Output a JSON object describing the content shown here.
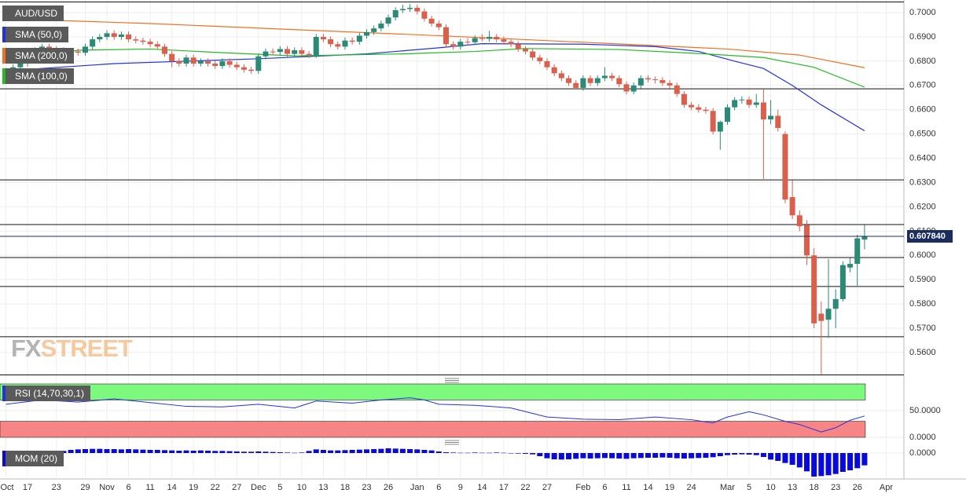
{
  "chart_data": [
    {
      "type": "candlestick",
      "title": "AUD/USD",
      "categories": [
        "Oct",
        null,
        null,
        "17",
        null,
        null,
        null,
        "23",
        null,
        null,
        null,
        "29",
        null,
        null,
        "Nov",
        null,
        null,
        "6",
        null,
        null,
        "11",
        null,
        null,
        "14",
        null,
        null,
        "19",
        null,
        null,
        "22",
        null,
        null,
        "27",
        null,
        null,
        "Dec",
        null,
        null,
        "5",
        null,
        null,
        "10",
        null,
        null,
        "13",
        null,
        null,
        "18",
        null,
        null,
        "23",
        null,
        null,
        "26",
        null,
        null,
        null,
        "Jan",
        null,
        null,
        "6",
        null,
        null,
        "9",
        null,
        null,
        "14",
        null,
        null,
        "17",
        null,
        null,
        "22",
        null,
        null,
        "27",
        null,
        null,
        null,
        null,
        "Feb",
        null,
        null,
        "6",
        null,
        null,
        "11",
        null,
        null,
        "14",
        null,
        null,
        "19",
        null,
        null,
        "24",
        null,
        null,
        null,
        null,
        "Mar",
        null,
        null,
        "5",
        null,
        null,
        "10",
        null,
        null,
        "13",
        null,
        null,
        "18",
        null,
        null,
        "23",
        null,
        null,
        "26",
        null,
        null,
        null,
        "Apr"
      ],
      "candles": [
        [
          0.675,
          0.6772,
          0.6738,
          0.676
        ],
        [
          0.676,
          0.6787,
          0.6748,
          0.6775
        ],
        [
          0.6775,
          0.6802,
          0.6763,
          0.679
        ],
        [
          0.679,
          0.6842,
          0.6778,
          0.683
        ],
        [
          0.683,
          0.6857,
          0.6818,
          0.6845
        ],
        [
          0.6845,
          0.6872,
          0.6833,
          0.686
        ],
        [
          0.686,
          0.6872,
          0.6838,
          0.685
        ],
        [
          0.685,
          0.6862,
          0.6833,
          0.6845
        ],
        [
          0.6845,
          0.6857,
          0.6813,
          0.6825
        ],
        [
          0.6825,
          0.6852,
          0.6813,
          0.684
        ],
        [
          0.684,
          0.6852,
          0.6823,
          0.6835
        ],
        [
          0.6835,
          0.6872,
          0.6823,
          0.686
        ],
        [
          0.686,
          0.6902,
          0.6848,
          0.689
        ],
        [
          0.689,
          0.6912,
          0.6878,
          0.69
        ],
        [
          0.69,
          0.6927,
          0.6888,
          0.6915
        ],
        [
          0.6915,
          0.6927,
          0.6888,
          0.69
        ],
        [
          0.69,
          0.6922,
          0.6888,
          0.691
        ],
        [
          0.691,
          0.6922,
          0.6878,
          0.689
        ],
        [
          0.689,
          0.6902,
          0.6873,
          0.6885
        ],
        [
          0.6885,
          0.6897,
          0.6868,
          0.688
        ],
        [
          0.688,
          0.6892,
          0.6858,
          0.687
        ],
        [
          0.687,
          0.6882,
          0.6848,
          0.686
        ],
        [
          0.686,
          0.6872,
          0.6818,
          0.683
        ],
        [
          0.683,
          0.6842,
          0.6775,
          0.68
        ],
        [
          0.68,
          0.6812,
          0.6778,
          0.679
        ],
        [
          0.679,
          0.6827,
          0.6778,
          0.6815
        ],
        [
          0.6815,
          0.6827,
          0.6778,
          0.679
        ],
        [
          0.679,
          0.6812,
          0.6778,
          0.68
        ],
        [
          0.68,
          0.6812,
          0.6778,
          0.679
        ],
        [
          0.679,
          0.6802,
          0.6768,
          0.678
        ],
        [
          0.678,
          0.6812,
          0.6768,
          0.68
        ],
        [
          0.68,
          0.6812,
          0.6773,
          0.6785
        ],
        [
          0.6785,
          0.6797,
          0.6763,
          0.6775
        ],
        [
          0.6775,
          0.6787,
          0.6753,
          0.6765
        ],
        [
          0.6765,
          0.6777,
          0.6748,
          0.676
        ],
        [
          0.676,
          0.6832,
          0.6748,
          0.682
        ],
        [
          0.682,
          0.6852,
          0.6808,
          0.684
        ],
        [
          0.684,
          0.6852,
          0.6828,
          0.6838
        ],
        [
          0.6838,
          0.6862,
          0.6826,
          0.685
        ],
        [
          0.685,
          0.6862,
          0.6818,
          0.683
        ],
        [
          0.683,
          0.6857,
          0.6818,
          0.6845
        ],
        [
          0.6845,
          0.6857,
          0.6818,
          0.683
        ],
        [
          0.683,
          0.6842,
          0.6813,
          0.6825
        ],
        [
          0.6825,
          0.6912,
          0.6813,
          0.69
        ],
        [
          0.69,
          0.6912,
          0.6878,
          0.689
        ],
        [
          0.689,
          0.6902,
          0.6858,
          0.687
        ],
        [
          0.687,
          0.6882,
          0.6848,
          0.686
        ],
        [
          0.686,
          0.6897,
          0.6848,
          0.6885
        ],
        [
          0.6885,
          0.6897,
          0.6868,
          0.688
        ],
        [
          0.688,
          0.6917,
          0.6868,
          0.6905
        ],
        [
          0.6905,
          0.6932,
          0.6893,
          0.692
        ],
        [
          0.692,
          0.6947,
          0.6908,
          0.6935
        ],
        [
          0.6935,
          0.6967,
          0.6923,
          0.6955
        ],
        [
          0.6955,
          0.6992,
          0.6943,
          0.698
        ],
        [
          0.698,
          0.7022,
          0.6968,
          0.701
        ],
        [
          0.701,
          0.7032,
          0.6998,
          0.7015
        ],
        [
          0.7015,
          0.7035,
          0.7003,
          0.702
        ],
        [
          0.702,
          0.7032,
          0.6993,
          0.7005
        ],
        [
          0.7005,
          0.7017,
          0.6963,
          0.6975
        ],
        [
          0.6975,
          0.6987,
          0.6943,
          0.6955
        ],
        [
          0.6955,
          0.6967,
          0.6928,
          0.694
        ],
        [
          0.694,
          0.6952,
          0.6858,
          0.687
        ],
        [
          0.687,
          0.6882,
          0.6848,
          0.686
        ],
        [
          0.686,
          0.6892,
          0.6848,
          0.688
        ],
        [
          0.688,
          0.6895,
          0.6865,
          0.6878
        ],
        [
          0.6878,
          0.6907,
          0.6866,
          0.6895
        ],
        [
          0.6895,
          0.6912,
          0.6882,
          0.6892
        ],
        [
          0.6892,
          0.6925,
          0.688,
          0.69
        ],
        [
          0.69,
          0.6912,
          0.6878,
          0.689
        ],
        [
          0.689,
          0.6902,
          0.6868,
          0.688
        ],
        [
          0.688,
          0.6892,
          0.6858,
          0.687
        ],
        [
          0.687,
          0.6882,
          0.6838,
          0.685
        ],
        [
          0.685,
          0.6862,
          0.6828,
          0.684
        ],
        [
          0.684,
          0.6852,
          0.6803,
          0.6815
        ],
        [
          0.6815,
          0.6827,
          0.6788,
          0.68
        ],
        [
          0.68,
          0.6812,
          0.6763,
          0.6775
        ],
        [
          0.6775,
          0.6787,
          0.6738,
          0.675
        ],
        [
          0.675,
          0.6762,
          0.6718,
          0.673
        ],
        [
          0.673,
          0.6742,
          0.6698,
          0.671
        ],
        [
          0.671,
          0.6722,
          0.6683,
          0.669
        ],
        [
          0.669,
          0.6742,
          0.6678,
          0.673
        ],
        [
          0.673,
          0.6742,
          0.6698,
          0.671
        ],
        [
          0.671,
          0.6742,
          0.6698,
          0.673
        ],
        [
          0.673,
          0.6775,
          0.6718,
          0.674
        ],
        [
          0.674,
          0.6752,
          0.6718,
          0.673
        ],
        [
          0.673,
          0.6742,
          0.6693,
          0.6705
        ],
        [
          0.6705,
          0.6717,
          0.6663,
          0.6675
        ],
        [
          0.6675,
          0.6712,
          0.6663,
          0.67
        ],
        [
          0.67,
          0.6742,
          0.6688,
          0.673
        ],
        [
          0.673,
          0.6742,
          0.6713,
          0.6725
        ],
        [
          0.6725,
          0.6737,
          0.6708,
          0.6722
        ],
        [
          0.6722,
          0.6734,
          0.6698,
          0.671
        ],
        [
          0.671,
          0.6722,
          0.6688,
          0.67
        ],
        [
          0.67,
          0.6712,
          0.6653,
          0.6665
        ],
        [
          0.6665,
          0.6677,
          0.6608,
          0.662
        ],
        [
          0.662,
          0.6632,
          0.6598,
          0.661
        ],
        [
          0.661,
          0.6622,
          0.6588,
          0.66
        ],
        [
          0.66,
          0.6612,
          0.6583,
          0.6595
        ],
        [
          0.6595,
          0.6607,
          0.6498,
          0.651
        ],
        [
          0.651,
          0.6555,
          0.6435,
          0.655
        ],
        [
          0.655,
          0.6622,
          0.6538,
          0.661
        ],
        [
          0.661,
          0.6652,
          0.6598,
          0.664
        ],
        [
          0.664,
          0.6655,
          0.6625,
          0.6642
        ],
        [
          0.6642,
          0.6654,
          0.6608,
          0.662
        ],
        [
          0.662,
          0.6665,
          0.6608,
          0.663
        ],
        [
          0.663,
          0.6685,
          0.6315,
          0.656
        ],
        [
          0.656,
          0.664,
          0.654,
          0.6575
        ],
        [
          0.6575,
          0.66,
          0.651,
          0.6525
        ],
        [
          0.65,
          0.651,
          0.6215,
          0.623
        ],
        [
          0.624,
          0.631,
          0.615,
          0.6165
        ],
        [
          0.6165,
          0.6185,
          0.61,
          0.612
        ],
        [
          0.6125,
          0.6145,
          0.596,
          0.6
        ],
        [
          0.6,
          0.603,
          0.57,
          0.572
        ],
        [
          0.576,
          0.581,
          0.551,
          0.573
        ],
        [
          0.5735,
          0.5985,
          0.566,
          0.578
        ],
        [
          0.578,
          0.586,
          0.57,
          0.582
        ],
        [
          0.582,
          0.5975,
          0.581,
          0.596
        ],
        [
          0.595,
          0.599,
          0.593,
          0.5965
        ],
        [
          0.5965,
          0.6085,
          0.587,
          0.607
        ],
        [
          0.6065,
          0.6125,
          0.6025,
          0.6078
        ],
        null,
        null,
        null
      ],
      "colors": {
        "up": "#2b8a76",
        "down": "#d9604c"
      },
      "ylim": [
        0.5506,
        0.7052
      ],
      "yticks": [
        {
          "value": 0.7,
          "label": "0.7000"
        },
        {
          "value": 0.69,
          "label": "0.6900"
        },
        {
          "value": 0.68,
          "label": "0.6800"
        },
        {
          "value": 0.67,
          "label": "0.6700"
        },
        {
          "value": 0.66,
          "label": "0.6600"
        },
        {
          "value": 0.65,
          "label": "0.6500"
        },
        {
          "value": 0.64,
          "label": "0.6400"
        },
        {
          "value": 0.63,
          "label": "0.6300"
        },
        {
          "value": 0.62,
          "label": "0.6200"
        },
        {
          "value": 0.61,
          "label": "0.6100"
        },
        {
          "value": 0.6,
          "label": "0.6000"
        },
        {
          "value": 0.59,
          "label": "0.5900"
        },
        {
          "value": 0.58,
          "label": "0.5800"
        },
        {
          "value": 0.57,
          "label": "0.5700"
        },
        {
          "value": 0.56,
          "label": "0.5600"
        }
      ],
      "grid": true,
      "levels": [
        0.6686,
        0.6311,
        0.6127,
        0.5991,
        0.5872,
        0.5665
      ],
      "last_price": {
        "value": 0.60784,
        "label": "0.607840"
      },
      "indicators": [
        {
          "name": "SMA (50,0)",
          "color": "#2233dd",
          "x": [
            0,
            15,
            35,
            50,
            60,
            66,
            80,
            90,
            96,
            101,
            105,
            109,
            113,
            119
          ],
          "values": [
            0.676,
            0.679,
            0.681,
            0.683,
            0.6855,
            0.6872,
            0.687,
            0.686,
            0.684,
            0.68,
            0.677,
            0.67,
            0.662,
            0.6513
          ]
        },
        {
          "name": "SMA (200,0)",
          "color": "#f07020",
          "x": [
            0,
            20,
            40,
            60,
            80,
            100,
            110,
            119
          ],
          "values": [
            0.6975,
            0.6955,
            0.693,
            0.6905,
            0.6878,
            0.685,
            0.6825,
            0.6773
          ]
        },
        {
          "name": "SMA (100,0)",
          "color": "#22bb22",
          "x": [
            0,
            10,
            20,
            30,
            40,
            55,
            65,
            72,
            85,
            97,
            105,
            112,
            119
          ],
          "values": [
            0.6795,
            0.6845,
            0.685,
            0.6835,
            0.6822,
            0.683,
            0.684,
            0.6852,
            0.6848,
            0.683,
            0.6815,
            0.6775,
            0.6693
          ]
        }
      ],
      "watermark": [
        "FX",
        "STREET"
      ]
    },
    {
      "type": "line",
      "title": "RSI (14,70,30,1)",
      "color": "#2233dd",
      "x": [
        0,
        5,
        10,
        15,
        20,
        25,
        30,
        35,
        40,
        43,
        48,
        52,
        56,
        58,
        60,
        65,
        70,
        75,
        80,
        85,
        90,
        95,
        98,
        100,
        103,
        105,
        108,
        110,
        113,
        115,
        117,
        119
      ],
      "values": [
        62,
        70,
        66,
        72,
        65,
        58,
        57,
        62,
        55,
        68,
        64,
        70,
        74,
        70,
        62,
        60,
        55,
        38,
        34,
        33,
        38,
        33,
        27,
        38,
        48,
        42,
        30,
        24,
        10,
        18,
        32,
        40
      ],
      "ylim": [
        0,
        100
      ],
      "yticks": [
        {
          "value": 50,
          "label": "50.0000"
        },
        {
          "value": 0,
          "label": "0.0000"
        }
      ],
      "bands": [
        {
          "from": 70,
          "to": 100,
          "color": "#7dfa7d"
        },
        {
          "from": 0,
          "to": 30,
          "color": "#f88585"
        }
      ]
    },
    {
      "type": "bar",
      "title": "MOM (20)",
      "color": "#0a0ad8",
      "values": [
        0.006,
        0.005,
        0.006,
        0.007,
        0.006,
        0.005,
        0.006,
        0.007,
        0.008,
        0.012,
        0.014,
        0.015,
        0.016,
        0.016,
        0.015,
        0.015,
        0.014,
        0.015,
        0.014,
        0.013,
        0.012,
        0.012,
        0.011,
        0.01,
        0.009,
        0.01,
        0.009,
        0.01,
        0.009,
        0.008,
        0.008,
        0.007,
        0.006,
        0.005,
        0.005,
        0.006,
        0.005,
        0.004,
        0.003,
        0.002,
        0.001,
        0.002,
        0.008,
        0.014,
        0.012,
        0.01,
        0.01,
        0.011,
        0.012,
        0.013,
        0.014,
        0.015,
        0.016,
        0.018,
        0.017,
        0.016,
        0.015,
        0.014,
        0.012,
        0.01,
        0.006,
        0.003,
        0.002,
        0.001,
        0.001,
        0.002,
        0.001,
        0.001,
        0.002,
        0.001,
        -0.001,
        -0.002,
        -0.003,
        -0.005,
        -0.012,
        -0.02,
        -0.024,
        -0.025,
        -0.024,
        -0.022,
        -0.02,
        -0.021,
        -0.02,
        -0.019,
        -0.02,
        -0.021,
        -0.022,
        -0.02,
        -0.019,
        -0.018,
        -0.018,
        -0.017,
        -0.018,
        -0.02,
        -0.021,
        -0.02,
        -0.019,
        -0.018,
        -0.016,
        -0.012,
        -0.008,
        -0.006,
        -0.005,
        -0.006,
        -0.008,
        -0.015,
        -0.025,
        -0.03,
        -0.038,
        -0.045,
        -0.055,
        -0.07,
        -0.09,
        -0.088,
        -0.085,
        -0.08,
        -0.072,
        -0.066,
        -0.058,
        -0.047,
        null,
        null,
        null
      ],
      "ylim": [
        -0.093,
        0.036
      ],
      "yticks": [
        {
          "value": 0,
          "label": "0.0000"
        }
      ]
    }
  ]
}
